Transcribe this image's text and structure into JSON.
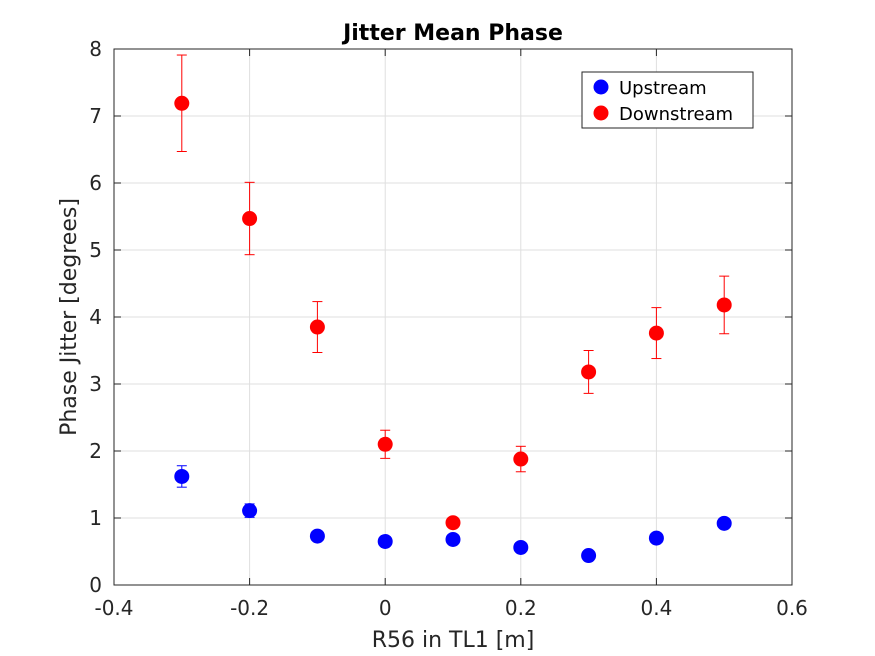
{
  "chart_data": {
    "type": "scatter",
    "title": "Jitter Mean Phase",
    "xlabel": "R56 in TL1 [m]",
    "ylabel": "Phase Jitter [degrees]",
    "xlim": [
      -0.4,
      0.6
    ],
    "ylim": [
      0,
      8
    ],
    "xticks": [
      -0.4,
      -0.2,
      0,
      0.2,
      0.4,
      0.6
    ],
    "xtick_labels": [
      "-0.4",
      "-0.2",
      "0",
      "0.2",
      "0.4",
      "0.6"
    ],
    "yticks": [
      0,
      1,
      2,
      3,
      4,
      5,
      6,
      7,
      8
    ],
    "ytick_labels": [
      "0",
      "1",
      "2",
      "3",
      "4",
      "5",
      "6",
      "7",
      "8"
    ],
    "grid": true,
    "legend_position": "top-right",
    "series": [
      {
        "name": "Upstream",
        "color": "#0000ff",
        "x": [
          -0.3,
          -0.2,
          -0.1,
          0,
          0.1,
          0.2,
          0.3,
          0.4,
          0.5
        ],
        "y": [
          1.62,
          1.11,
          0.73,
          0.65,
          0.68,
          0.56,
          0.44,
          0.7,
          0.92
        ],
        "err": [
          0.16,
          0.1,
          0.05,
          0.04,
          0.04,
          0.04,
          0.03,
          0.05,
          0.06
        ]
      },
      {
        "name": "Downstream",
        "color": "#ff0000",
        "x": [
          -0.3,
          -0.2,
          -0.1,
          0,
          0.1,
          0.2,
          0.3,
          0.4,
          0.5
        ],
        "y": [
          7.19,
          5.47,
          3.85,
          2.1,
          0.93,
          1.88,
          3.18,
          3.76,
          4.18
        ],
        "err": [
          0.72,
          0.54,
          0.38,
          0.21,
          0.05,
          0.19,
          0.32,
          0.38,
          0.43
        ]
      }
    ]
  }
}
